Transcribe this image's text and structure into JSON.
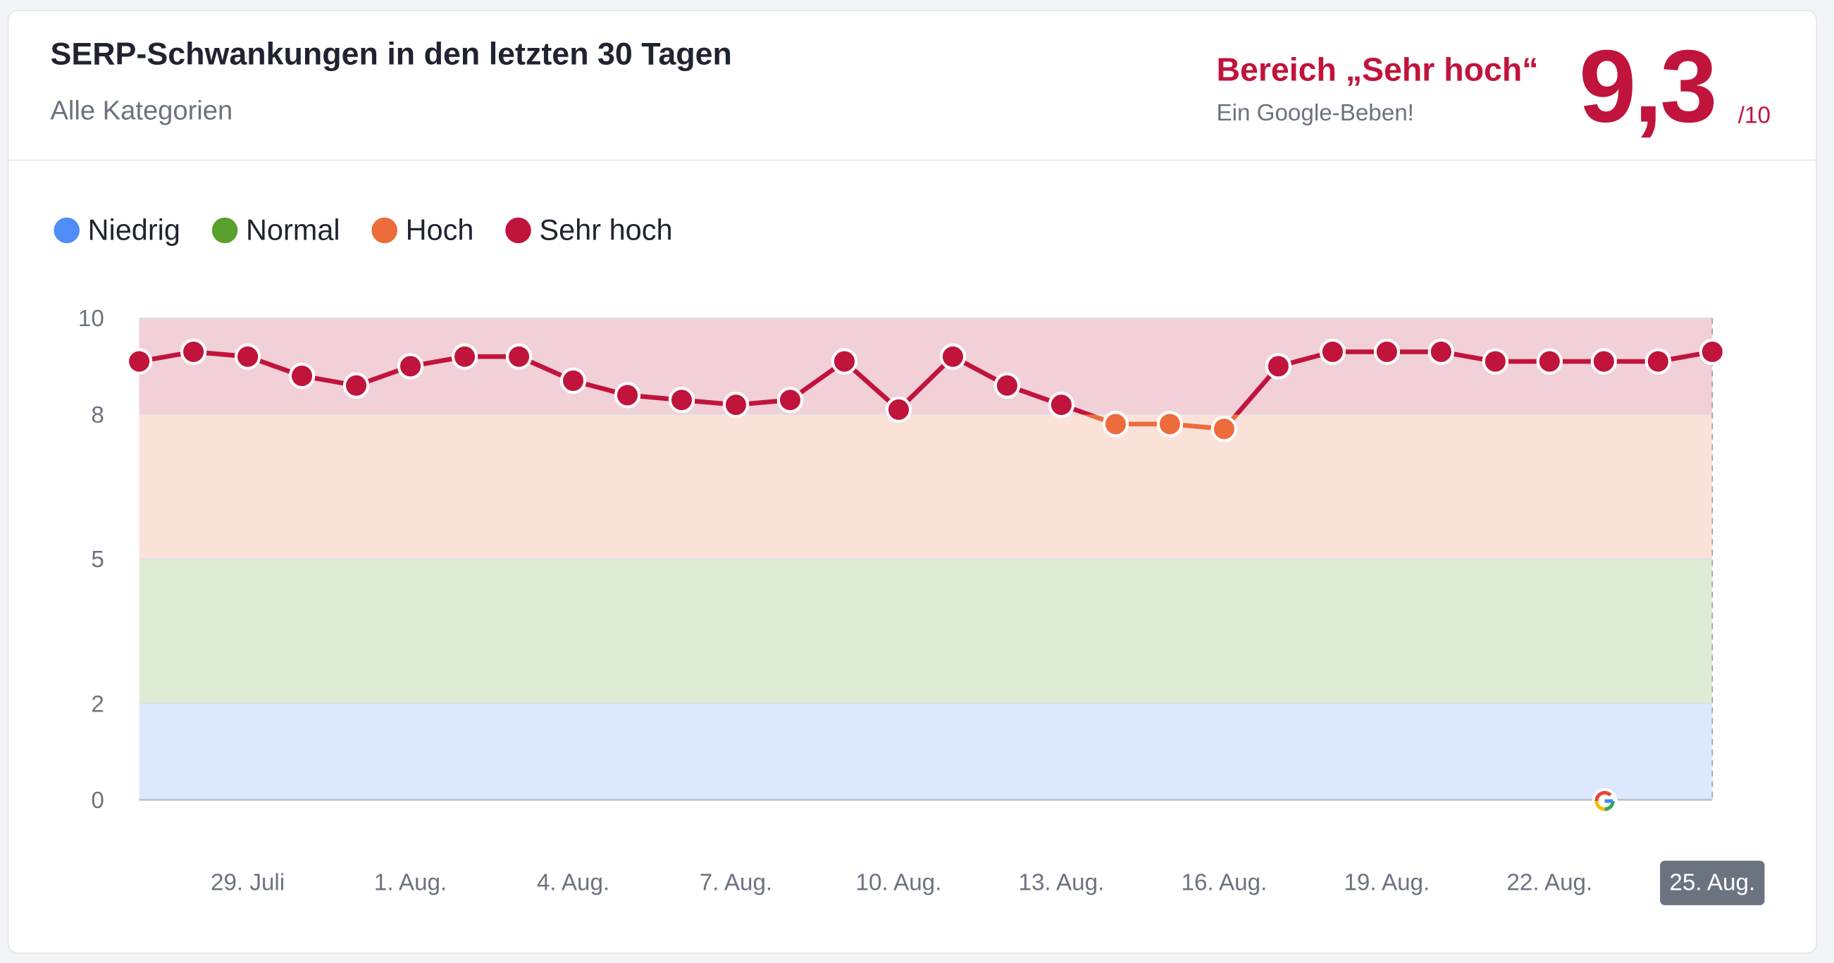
{
  "header": {
    "title": "SERP-Schwankungen in den letzten 30 Tagen",
    "subtitle": "Alle Kategorien",
    "range_label": "Bereich „Sehr hoch“",
    "range_note": "Ein Google-Beben!",
    "score": "9,3",
    "score_max": "/10"
  },
  "chart_data": {
    "type": "line",
    "categories": [
      null,
      null,
      "29. Juli",
      null,
      null,
      "1. Aug.",
      null,
      null,
      "4. Aug.",
      null,
      null,
      "7. Aug.",
      null,
      null,
      "10. Aug.",
      null,
      null,
      "13. Aug.",
      null,
      null,
      "16. Aug.",
      null,
      null,
      "19. Aug.",
      null,
      null,
      "22. Aug.",
      null,
      null,
      "25. Aug."
    ],
    "values": [
      9.1,
      9.3,
      9.2,
      8.8,
      8.6,
      9.0,
      9.2,
      9.2,
      8.7,
      8.4,
      8.3,
      8.2,
      8.3,
      9.1,
      8.1,
      9.2,
      8.6,
      8.2,
      7.8,
      7.8,
      7.7,
      9.0,
      9.3,
      9.3,
      9.3,
      9.1,
      9.1,
      9.1,
      9.1,
      9.3
    ],
    "bands": [
      {
        "name": "Niedrig",
        "range": [
          0,
          2
        ],
        "color": "#4f8ef7"
      },
      {
        "name": "Normal",
        "range": [
          2,
          5
        ],
        "color": "#5aa02c"
      },
      {
        "name": "Hoch",
        "range": [
          5,
          8
        ],
        "color": "#ec6c3c"
      },
      {
        "name": "Sehr hoch",
        "range": [
          8,
          10
        ],
        "color": "#c0143c"
      }
    ],
    "ylim": [
      0,
      10
    ],
    "yticks": [
      0,
      2,
      5,
      8,
      10
    ],
    "grid": true
  }
}
